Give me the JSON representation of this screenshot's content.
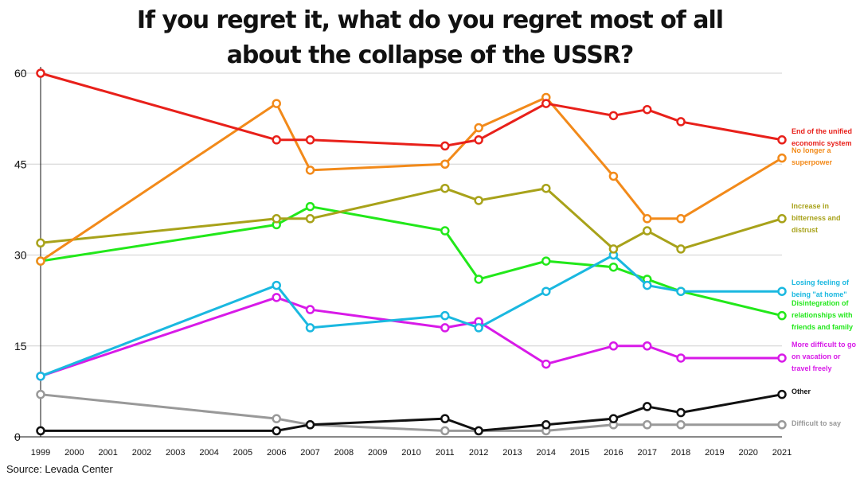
{
  "source": "Source: Levada Center",
  "chart_data": {
    "type": "line",
    "title_lines": [
      "If you regret it, what do you regret most of all",
      "about the collapse of the USSR?"
    ],
    "x_ticks": [
      "1999",
      "2000",
      "2001",
      "2002",
      "2003",
      "2004",
      "2005",
      "2006",
      "2007",
      "2008",
      "2009",
      "2010",
      "2011",
      "2012",
      "2013",
      "2014",
      "2015",
      "2016",
      "2017",
      "2018",
      "2019",
      "2020",
      "2021"
    ],
    "y_ticks": [
      0,
      15,
      30,
      45,
      60
    ],
    "ylim": [
      0,
      60
    ],
    "xlim": [
      1999,
      2021
    ],
    "grid": true,
    "legend_placement": "right, inline labels",
    "x": [
      1999,
      2006,
      2007,
      2011,
      2012,
      2014,
      2016,
      2017,
      2018,
      2021
    ],
    "series": [
      {
        "name": "End of the unified economic system",
        "label_lines": [
          "End of the unified",
          "economic system"
        ],
        "color": "#e8201a",
        "values": [
          60,
          49,
          49,
          48,
          49,
          55,
          53,
          54,
          52,
          49
        ]
      },
      {
        "name": "No longer a superpower",
        "label_lines": [
          "No longer a",
          "superpower"
        ],
        "color": "#f28a1a",
        "values": [
          29,
          55,
          44,
          45,
          51,
          56,
          43,
          36,
          36,
          46
        ]
      },
      {
        "name": "Increase in bitterness and distrust",
        "label_lines": [
          "Increase in",
          "bitterness and",
          "distrust"
        ],
        "color": "#a8a21a",
        "values": [
          32,
          36,
          36,
          41,
          39,
          41,
          31,
          34,
          31,
          36
        ]
      },
      {
        "name": "Losing feeling of being \"at home\"",
        "label_lines": [
          "Losing feeling of",
          "being \"at home\""
        ],
        "color": "#1ab8e0",
        "values": [
          10,
          25,
          18,
          20,
          18,
          24,
          30,
          25,
          24,
          24
        ]
      },
      {
        "name": "Disintegration of relationships with friends and family",
        "label_lines": [
          "Disintegration of",
          "relationships with",
          "friends and family"
        ],
        "color": "#22e81a",
        "values": [
          29,
          35,
          38,
          34,
          26,
          29,
          28,
          26,
          24,
          20
        ]
      },
      {
        "name": "More difficult to go on vacation or travel freely",
        "label_lines": [
          "More difficult to go",
          "on vacation or",
          "travel freely"
        ],
        "color": "#d81ae8",
        "values": [
          10,
          23,
          21,
          18,
          19,
          12,
          15,
          15,
          13,
          13
        ]
      },
      {
        "name": "Other",
        "label_lines": [
          "Other"
        ],
        "color": "#111111",
        "values": [
          1,
          1,
          2,
          3,
          1,
          2,
          3,
          5,
          4,
          7
        ]
      },
      {
        "name": "Difficult to say",
        "label_lines": [
          "Difficult to say"
        ],
        "color": "#999999",
        "values": [
          7,
          3,
          2,
          1,
          1,
          1,
          2,
          2,
          2,
          2
        ]
      }
    ]
  }
}
